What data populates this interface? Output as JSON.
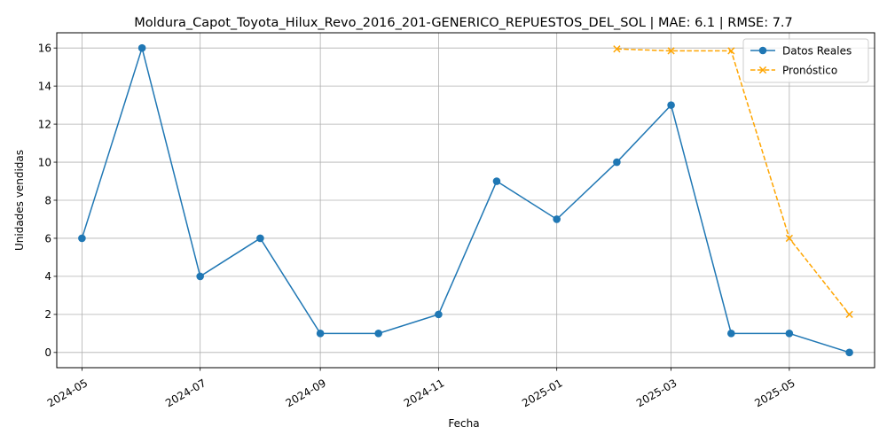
{
  "chart_data": {
    "type": "line",
    "title": "Moldura_Capot_Toyota_Hilux_Revo_2016_201-GENERICO_REPUESTOS_DEL_SOL | MAE: 6.1 | RMSE: 7.7",
    "xlabel": "Fecha",
    "ylabel": "Unidades vendidas",
    "x_ticks": [
      "2024-05",
      "2024-07",
      "2024-09",
      "2024-11",
      "2025-01",
      "2025-03",
      "2025-05"
    ],
    "y_ticks": [
      0,
      2,
      4,
      6,
      8,
      10,
      12,
      14,
      16
    ],
    "ylim": [
      -0.8,
      16.8
    ],
    "xlim": [
      "2024-04-18",
      "2025-06-14"
    ],
    "grid": true,
    "legend_position": "top-right",
    "series": [
      {
        "name": "Datos Reales",
        "color": "#1f77b4",
        "style": "solid",
        "marker": "circle",
        "x": [
          "2024-05-01",
          "2024-06-01",
          "2024-07-01",
          "2024-08-01",
          "2024-09-01",
          "2024-10-01",
          "2024-11-01",
          "2024-12-01",
          "2025-01-01",
          "2025-02-01",
          "2025-03-01",
          "2025-04-01",
          "2025-05-01",
          "2025-06-01"
        ],
        "values": [
          6,
          16,
          4,
          6,
          1,
          1,
          2,
          9,
          7,
          10,
          13,
          1,
          1,
          0
        ]
      },
      {
        "name": "Pronóstico",
        "color": "#ffa500",
        "style": "dashed",
        "marker": "x",
        "x": [
          "2025-02-01",
          "2025-03-01",
          "2025-04-01",
          "2025-05-01",
          "2025-06-01"
        ],
        "values": [
          15.95,
          15.85,
          15.85,
          6,
          2
        ]
      }
    ]
  }
}
